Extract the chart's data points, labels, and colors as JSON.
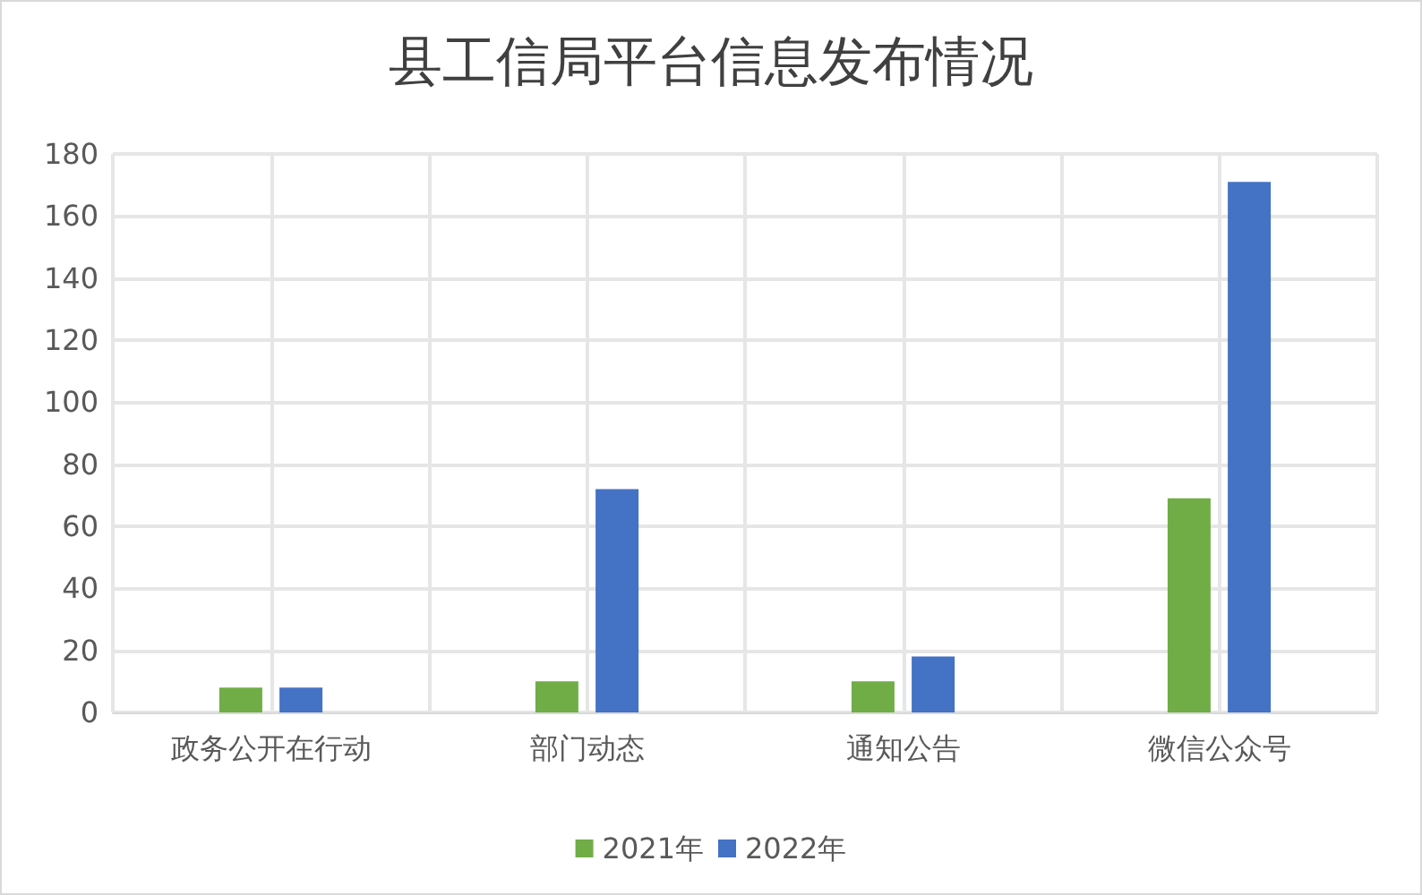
{
  "chart_data": {
    "type": "bar",
    "title": "县工信局平台信息发布情况",
    "categories": [
      "政务公开在行动",
      "部门动态",
      "通知公告",
      "微信公众号"
    ],
    "series": [
      {
        "name": "2021年",
        "color": "#70ad47",
        "values": [
          8,
          10,
          10,
          69
        ]
      },
      {
        "name": "2022年",
        "color": "#4472c4",
        "values": [
          8,
          72,
          18,
          171
        ]
      }
    ],
    "ylim": [
      0,
      180
    ],
    "yticks": [
      0,
      20,
      40,
      60,
      80,
      100,
      120,
      140,
      160,
      180
    ],
    "grid": true,
    "legend": "bottom"
  }
}
